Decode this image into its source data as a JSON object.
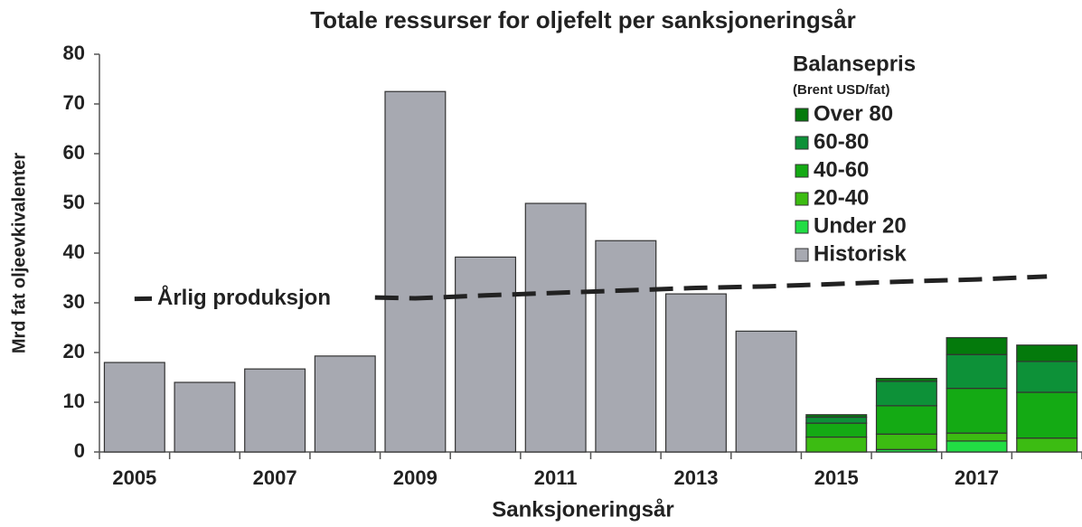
{
  "chart_data": {
    "type": "bar",
    "stacked": true,
    "title": "Totale ressurser for oljefelt per sanksjoneringsår",
    "x_label": "Sanksjoneringsår",
    "y_label": "Mrd fat oljeevkivalenter",
    "legend_title": "Balansepris",
    "legend_subtitle": "(Brent USD/fat)",
    "legend_position": "upper right",
    "categories": [
      "2005",
      null,
      "2007",
      null,
      "2009",
      null,
      "2011",
      null,
      "2013",
      null,
      "2015",
      null,
      "2017",
      null
    ],
    "ylim": [
      0,
      80
    ],
    "yticks": [
      0,
      10,
      20,
      30,
      40,
      50,
      60,
      70,
      80
    ],
    "series": [
      {
        "name": "Historisk",
        "color": "#a7a9b1",
        "values": [
          18,
          14,
          16.7,
          19.3,
          72.5,
          39.2,
          50,
          42.5,
          31.8,
          24.3,
          null,
          null,
          null,
          null
        ]
      },
      {
        "name": "Under 20",
        "color": "#22dd44",
        "values": [
          null,
          null,
          null,
          null,
          null,
          null,
          null,
          null,
          null,
          null,
          0,
          0.5,
          2.2,
          0
        ]
      },
      {
        "name": "20-40",
        "color": "#3cbc12",
        "values": [
          null,
          null,
          null,
          null,
          null,
          null,
          null,
          null,
          null,
          null,
          3,
          3.1,
          1.6,
          2.8
        ]
      },
      {
        "name": "40-60",
        "color": "#14aa14",
        "values": [
          null,
          null,
          null,
          null,
          null,
          null,
          null,
          null,
          null,
          null,
          2.8,
          5.7,
          9,
          9.2
        ]
      },
      {
        "name": "60-80",
        "color": "#0d9138",
        "values": [
          null,
          null,
          null,
          null,
          null,
          null,
          null,
          null,
          null,
          null,
          1.2,
          4.9,
          6.8,
          6.2
        ]
      },
      {
        "name": "Over 80",
        "color": "#047a0c",
        "values": [
          null,
          null,
          null,
          null,
          null,
          null,
          null,
          null,
          null,
          null,
          0.5,
          0.6,
          3.4,
          3.3
        ]
      }
    ],
    "line": {
      "name": "Årlig produksjon",
      "color": "#222222",
      "dashed": true,
      "values": [
        30.8,
        31,
        31.1,
        31.2,
        30.9,
        31.5,
        32,
        32.5,
        33,
        33.3,
        33.8,
        34.3,
        34.7,
        35.3
      ]
    }
  }
}
